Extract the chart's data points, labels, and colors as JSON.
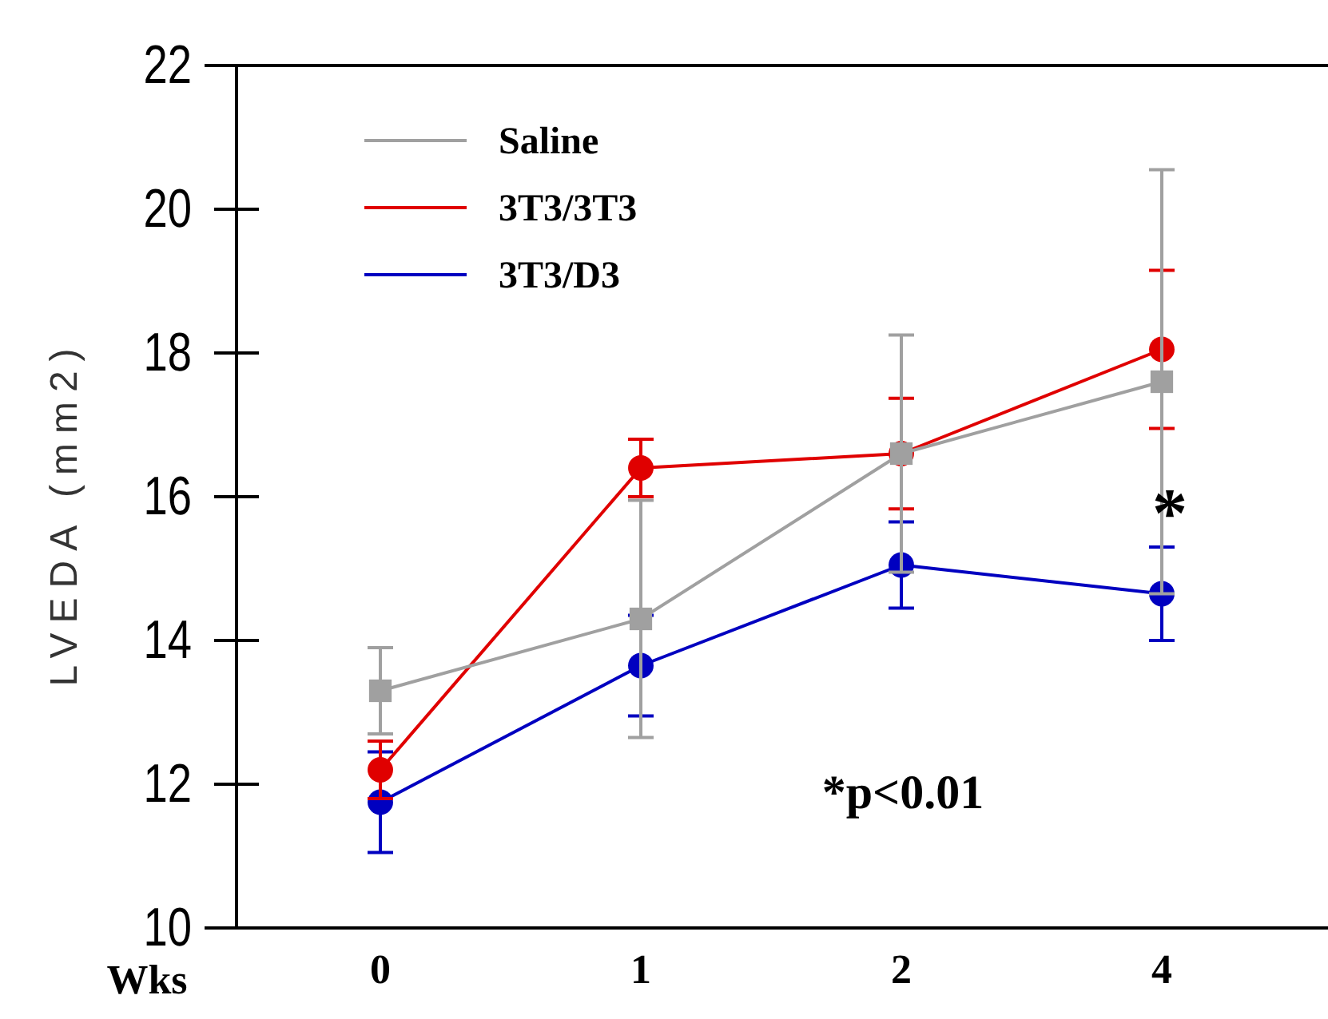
{
  "chart_data": {
    "type": "line",
    "xlabel": "Wks",
    "ylabel": "LVEDA (mm2)",
    "categories": [
      "0",
      "1",
      "2",
      "4"
    ],
    "ylim": [
      10,
      22
    ],
    "yticks": [
      10,
      12,
      14,
      16,
      18,
      20,
      22
    ],
    "legend": "top left",
    "series": [
      {
        "name": "Saline",
        "color": "#a0a0a0",
        "marker": "square",
        "values": [
          13.3,
          14.3,
          16.6,
          17.6
        ],
        "errors": [
          0.6,
          1.65,
          1.65,
          2.95
        ]
      },
      {
        "name": "3T3/3T3",
        "color": "#e00000",
        "marker": "circle",
        "values": [
          12.2,
          16.4,
          16.6,
          18.05
        ],
        "errors": [
          0.4,
          0.4,
          0.77,
          1.1
        ]
      },
      {
        "name": "3T3/D3",
        "color": "#0000c0",
        "marker": "circle",
        "values": [
          11.75,
          13.65,
          15.05,
          14.65
        ],
        "errors": [
          0.7,
          0.7,
          0.6,
          0.65
        ]
      }
    ],
    "annotations": [
      {
        "text": "*",
        "x": "4",
        "y": 15.85
      },
      "*p<0.01"
    ]
  }
}
